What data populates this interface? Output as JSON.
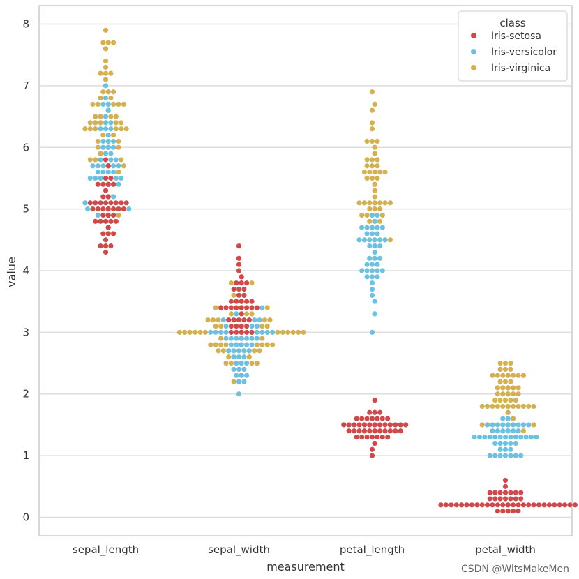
{
  "chart_data": {
    "type": "scatter",
    "subtype": "swarm",
    "title": "",
    "xlabel": "measurement",
    "ylabel": "value",
    "categories": [
      "sepal_length",
      "sepal_width",
      "petal_length",
      "petal_width"
    ],
    "ylim": [
      -0.3,
      8.3
    ],
    "yticks": [
      0,
      1,
      2,
      3,
      4,
      5,
      6,
      7,
      8
    ],
    "grid": true,
    "legend": {
      "title": "class",
      "placement": "top-right"
    },
    "series": [
      {
        "name": "Iris-setosa",
        "color": "#d04848",
        "values": {
          "sepal_length": [
            5.1,
            4.9,
            4.7,
            4.6,
            5.0,
            5.4,
            4.6,
            5.0,
            4.4,
            4.9,
            5.4,
            4.8,
            4.8,
            4.3,
            5.8,
            5.7,
            5.4,
            5.1,
            5.7,
            5.1,
            5.4,
            5.1,
            4.6,
            5.1,
            4.8,
            5.0,
            5.0,
            5.2,
            5.2,
            4.7,
            4.8,
            5.4,
            5.2,
            5.5,
            4.9,
            5.0,
            5.5,
            4.9,
            4.4,
            5.1,
            5.0,
            4.5,
            4.4,
            5.0,
            5.1,
            4.8,
            5.1,
            4.6,
            5.3,
            5.0
          ],
          "sepal_width": [
            3.5,
            3.0,
            3.2,
            3.1,
            3.6,
            3.9,
            3.4,
            3.4,
            2.9,
            3.1,
            3.7,
            3.4,
            3.0,
            3.0,
            4.0,
            4.4,
            3.9,
            3.5,
            3.8,
            3.8,
            3.4,
            3.7,
            3.6,
            3.3,
            3.4,
            3.0,
            3.4,
            3.5,
            3.4,
            3.2,
            3.1,
            3.4,
            4.1,
            4.2,
            3.1,
            3.2,
            3.5,
            3.1,
            3.0,
            3.4,
            3.5,
            2.3,
            3.2,
            3.5,
            3.8,
            3.0,
            3.8,
            3.2,
            3.7,
            3.3
          ],
          "petal_length": [
            1.4,
            1.4,
            1.3,
            1.5,
            1.4,
            1.7,
            1.4,
            1.5,
            1.4,
            1.5,
            1.5,
            1.6,
            1.4,
            1.1,
            1.2,
            1.5,
            1.3,
            1.4,
            1.7,
            1.5,
            1.7,
            1.5,
            1.0,
            1.7,
            1.9,
            1.6,
            1.6,
            1.5,
            1.4,
            1.6,
            1.6,
            1.5,
            1.5,
            1.4,
            1.5,
            1.2,
            1.3,
            1.5,
            1.3,
            1.5,
            1.3,
            1.3,
            1.3,
            1.6,
            1.9,
            1.4,
            1.6,
            1.4,
            1.5,
            1.4
          ],
          "petal_width": [
            0.2,
            0.2,
            0.2,
            0.2,
            0.2,
            0.4,
            0.3,
            0.2,
            0.2,
            0.1,
            0.2,
            0.2,
            0.1,
            0.1,
            0.2,
            0.4,
            0.4,
            0.3,
            0.3,
            0.3,
            0.2,
            0.4,
            0.2,
            0.5,
            0.2,
            0.2,
            0.4,
            0.2,
            0.2,
            0.2,
            0.2,
            0.4,
            0.1,
            0.2,
            0.1,
            0.2,
            0.2,
            0.1,
            0.2,
            0.2,
            0.3,
            0.3,
            0.2,
            0.6,
            0.4,
            0.3,
            0.2,
            0.2,
            0.2,
            0.2
          ]
        }
      },
      {
        "name": "Iris-versicolor",
        "color": "#6cc0e0",
        "values": {
          "sepal_length": [
            7.0,
            6.4,
            6.9,
            5.5,
            6.5,
            5.7,
            6.3,
            4.9,
            6.6,
            5.2,
            5.0,
            5.9,
            6.0,
            6.1,
            5.6,
            6.7,
            5.6,
            5.8,
            6.2,
            5.6,
            5.9,
            6.1,
            6.3,
            6.1,
            6.4,
            6.6,
            6.8,
            6.7,
            6.0,
            5.7,
            5.5,
            5.5,
            5.8,
            6.0,
            5.4,
            6.0,
            6.7,
            6.3,
            5.6,
            5.5,
            5.5,
            6.1,
            5.8,
            5.0,
            5.6,
            5.7,
            5.7,
            6.2,
            5.1,
            5.7
          ],
          "sepal_width": [
            3.2,
            3.2,
            3.1,
            2.3,
            2.8,
            2.8,
            3.3,
            2.4,
            2.9,
            2.7,
            2.0,
            3.0,
            2.2,
            2.9,
            2.9,
            3.1,
            3.0,
            2.7,
            2.2,
            2.5,
            3.2,
            2.8,
            2.5,
            2.8,
            2.9,
            3.0,
            2.8,
            3.0,
            2.9,
            2.6,
            2.4,
            2.4,
            2.7,
            2.7,
            3.0,
            3.4,
            3.1,
            2.3,
            3.0,
            2.5,
            2.6,
            3.0,
            2.6,
            2.3,
            2.7,
            3.0,
            2.9,
            2.9,
            2.5,
            2.8
          ],
          "petal_length": [
            4.7,
            4.5,
            4.9,
            4.0,
            4.6,
            4.5,
            4.7,
            3.3,
            4.6,
            3.9,
            3.5,
            4.2,
            4.0,
            4.7,
            3.6,
            4.4,
            4.5,
            4.1,
            4.5,
            3.9,
            4.8,
            4.0,
            4.9,
            4.7,
            4.3,
            4.4,
            4.8,
            5.0,
            4.5,
            3.5,
            3.8,
            3.7,
            3.9,
            5.1,
            4.5,
            4.5,
            4.7,
            4.4,
            4.1,
            4.0,
            4.4,
            4.6,
            4.0,
            3.3,
            4.2,
            4.2,
            4.2,
            4.3,
            3.0,
            4.1
          ],
          "petal_width": [
            1.4,
            1.5,
            1.5,
            1.3,
            1.5,
            1.3,
            1.6,
            1.0,
            1.3,
            1.4,
            1.0,
            1.5,
            1.0,
            1.4,
            1.3,
            1.4,
            1.5,
            1.0,
            1.5,
            1.1,
            1.8,
            1.3,
            1.5,
            1.2,
            1.3,
            1.4,
            1.4,
            1.7,
            1.5,
            1.0,
            1.1,
            1.0,
            1.2,
            1.6,
            1.5,
            1.6,
            1.5,
            1.3,
            1.3,
            1.3,
            1.2,
            1.4,
            1.2,
            1.0,
            1.3,
            1.2,
            1.3,
            1.3,
            1.1,
            1.3
          ]
        }
      },
      {
        "name": "Iris-virginica",
        "color": "#d4b050",
        "values": {
          "sepal_length": [
            6.3,
            5.8,
            7.1,
            6.3,
            6.5,
            7.6,
            4.9,
            7.3,
            6.7,
            7.2,
            6.5,
            6.4,
            6.8,
            5.7,
            5.8,
            6.4,
            6.5,
            7.7,
            7.7,
            6.0,
            6.9,
            5.6,
            7.7,
            6.3,
            6.7,
            7.2,
            6.2,
            6.1,
            6.4,
            7.2,
            7.4,
            7.9,
            6.4,
            6.3,
            6.1,
            7.7,
            6.3,
            6.4,
            6.0,
            6.9,
            6.7,
            6.9,
            5.8,
            6.8,
            6.7,
            6.7,
            6.3,
            6.5,
            6.2,
            5.9
          ],
          "sepal_width": [
            3.3,
            2.7,
            3.0,
            2.9,
            3.0,
            3.0,
            2.5,
            2.9,
            2.5,
            3.6,
            3.2,
            2.7,
            3.0,
            2.5,
            2.8,
            3.2,
            3.0,
            3.8,
            2.6,
            2.2,
            3.2,
            2.8,
            2.8,
            2.7,
            3.3,
            3.2,
            2.8,
            3.0,
            2.8,
            3.0,
            2.8,
            3.8,
            2.8,
            2.8,
            2.6,
            3.0,
            3.4,
            3.1,
            3.0,
            3.1,
            3.1,
            3.1,
            2.7,
            3.2,
            3.3,
            3.0,
            2.5,
            3.0,
            3.4,
            3.0
          ],
          "petal_length": [
            6.0,
            5.1,
            5.9,
            5.6,
            5.8,
            6.6,
            4.5,
            6.3,
            5.8,
            6.1,
            5.1,
            5.3,
            5.5,
            5.0,
            5.1,
            5.3,
            5.5,
            6.7,
            6.9,
            5.0,
            5.7,
            4.9,
            6.7,
            4.9,
            5.7,
            6.0,
            4.8,
            4.9,
            5.6,
            5.8,
            6.1,
            6.4,
            5.6,
            5.1,
            5.6,
            6.1,
            5.6,
            5.5,
            4.8,
            5.4,
            5.6,
            5.1,
            5.1,
            5.9,
            5.7,
            5.2,
            5.0,
            5.2,
            5.4,
            5.1
          ],
          "petal_width": [
            2.5,
            1.9,
            2.1,
            1.8,
            2.2,
            2.1,
            1.7,
            1.8,
            1.8,
            2.5,
            2.0,
            1.9,
            2.1,
            2.0,
            2.4,
            2.3,
            1.8,
            2.2,
            2.3,
            1.5,
            2.3,
            2.0,
            2.0,
            1.8,
            2.1,
            1.8,
            1.8,
            1.8,
            2.1,
            1.6,
            1.9,
            2.0,
            2.2,
            1.5,
            1.4,
            2.3,
            2.4,
            1.8,
            1.8,
            2.1,
            2.4,
            2.3,
            1.9,
            2.3,
            2.5,
            2.3,
            1.9,
            2.0,
            2.3,
            1.8
          ]
        }
      }
    ]
  },
  "watermark": "CSDN @WitsMakeMen"
}
